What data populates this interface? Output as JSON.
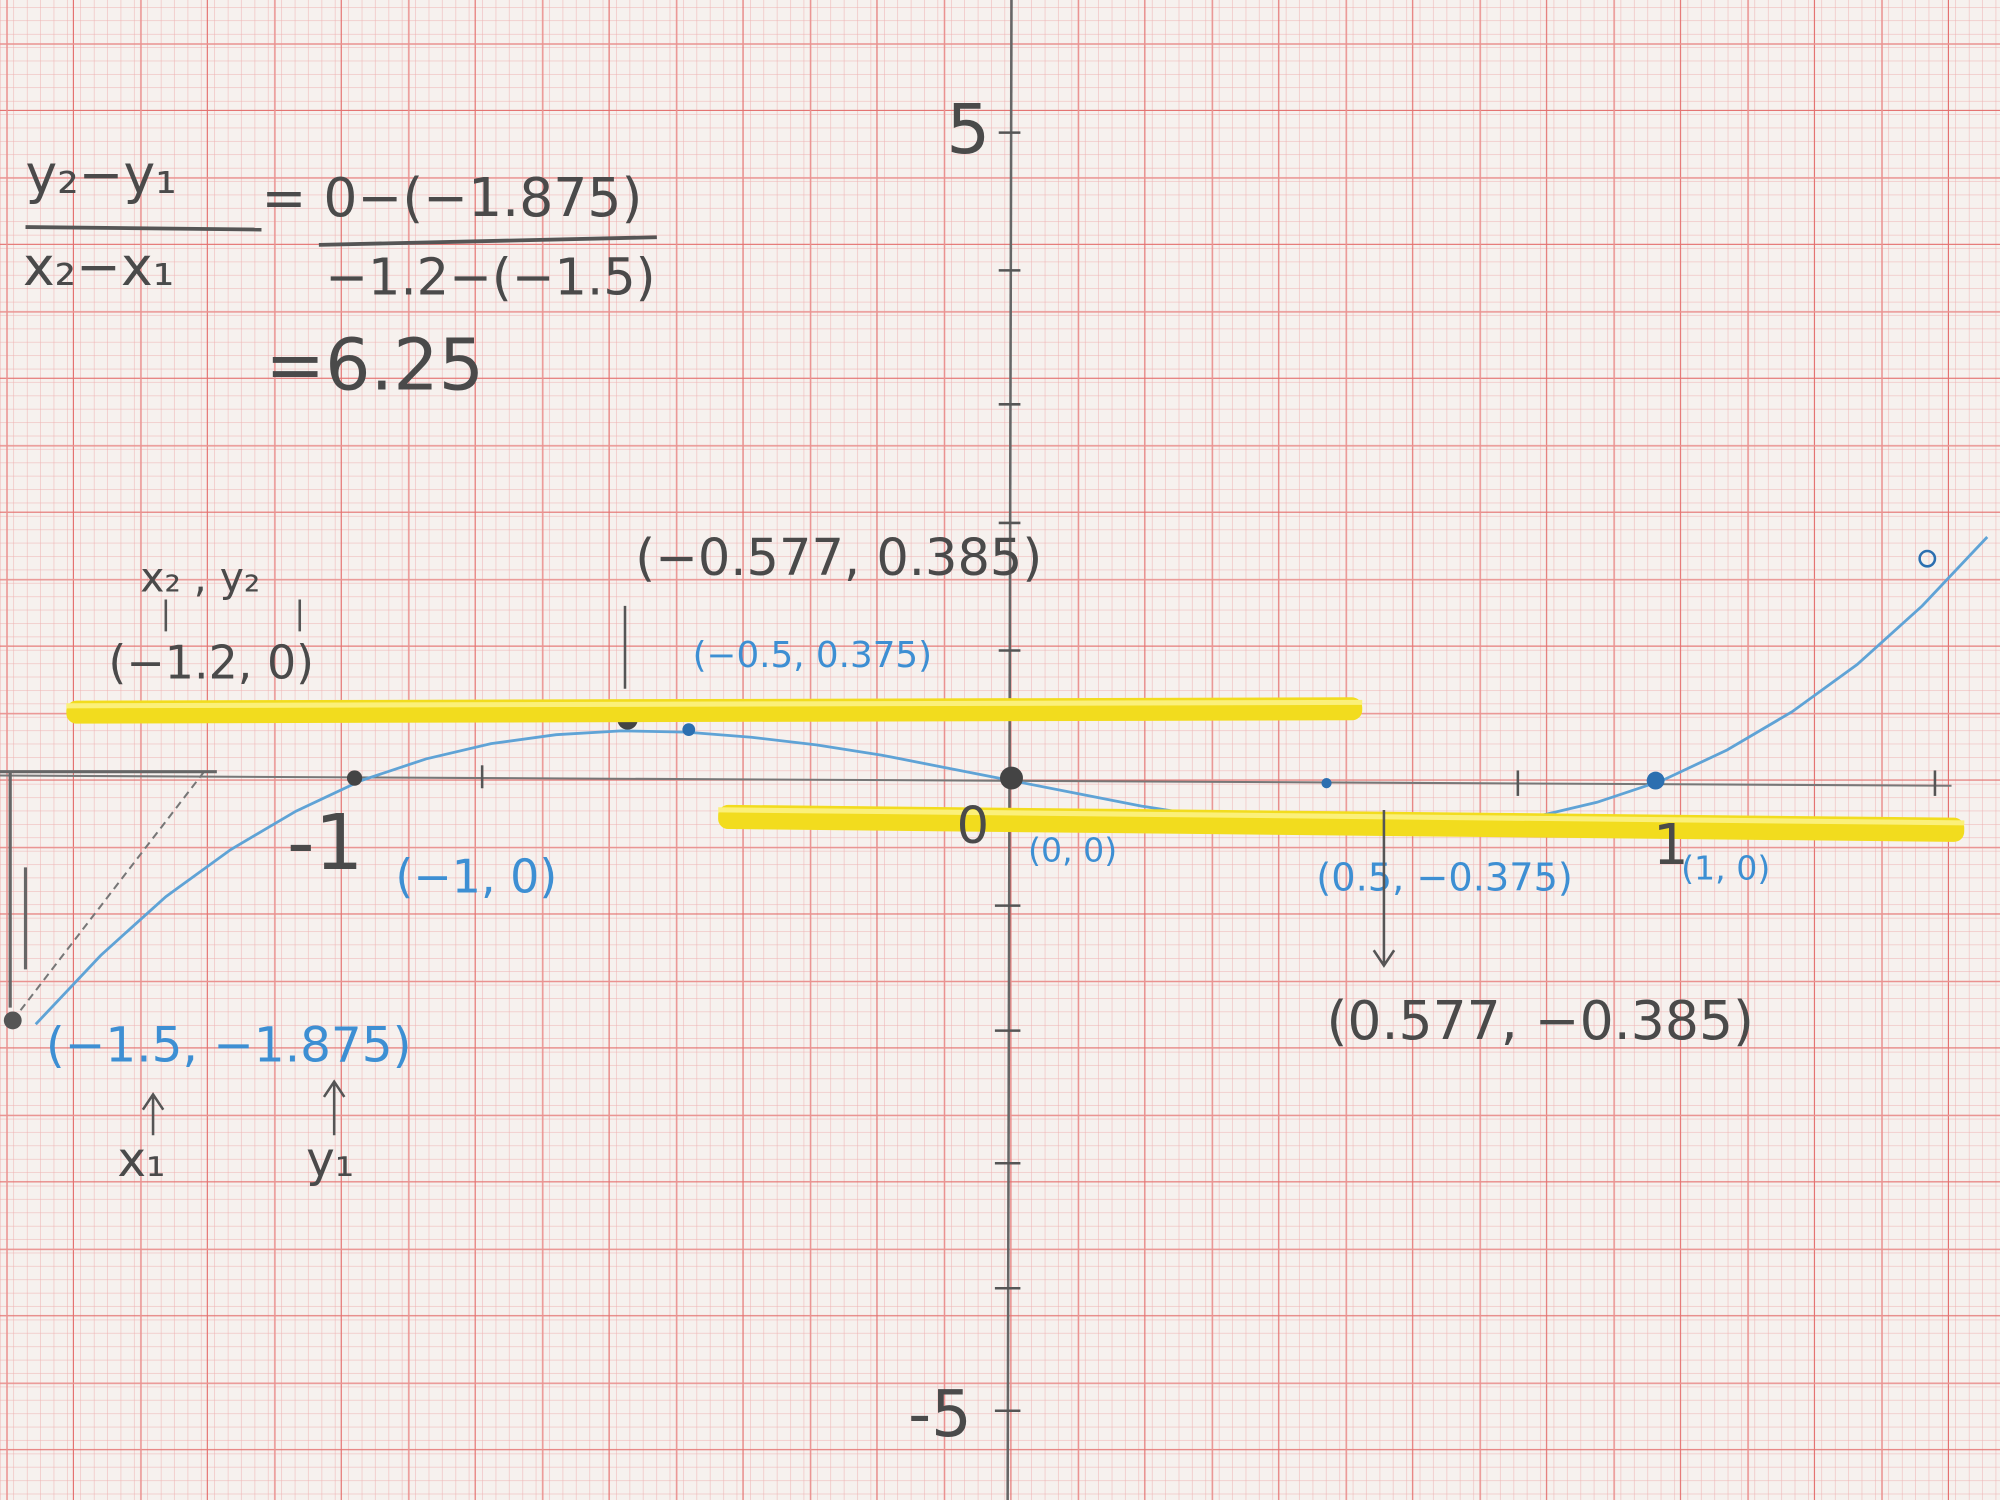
{
  "axis_labels": {
    "y_top": "5",
    "y_bottom": "-5",
    "origin": "0",
    "x_neg": "-1",
    "x_pos": "1"
  },
  "formula": {
    "lhs_num": "y₂−y₁",
    "lhs_den": "x₂−x₁",
    "rhs_num": "= 0−(−1.875)",
    "rhs_den": "−1.2−(−1.5)",
    "result": "=6.25"
  },
  "point_labels": {
    "x2_y2": "x₂ , y₂",
    "p_neg12": "(−1.2, 0)",
    "max_exact": "(−0.577, 0.385)",
    "max_approx": "(−0.5, 0.375)",
    "p_neg1": "(−1, 0)",
    "p_origin": "(0, 0)",
    "min_approx": "(0.5, −0.375)",
    "p_1": "(1, 0)",
    "min_exact": "(0.577, −0.385)",
    "p_neg15": "(−1.5, −1.875)",
    "x1": "x₁",
    "y1": "y₁"
  }
}
